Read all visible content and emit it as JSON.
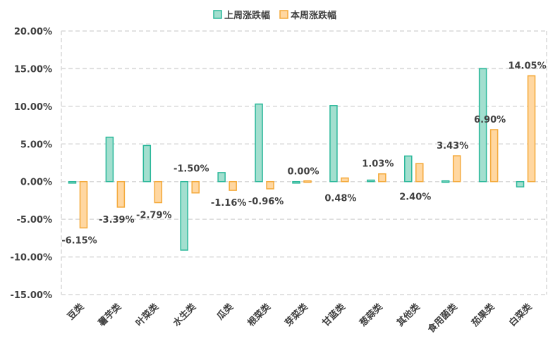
{
  "colors": {
    "last_week_fill": "#a3dfcf",
    "last_week_stroke": "#2bb89a",
    "this_week_fill": "#ffd7a1",
    "this_week_stroke": "#f4a93a",
    "grid": "#d9d9d9",
    "text": "#404040"
  },
  "chart_data": {
    "type": "bar",
    "categories": [
      "豆类",
      "薯芋类",
      "叶菜类",
      "水生类",
      "瓜类",
      "根菜类",
      "芽菜类",
      "甘蓝类",
      "葱蒜类",
      "其他类",
      "食用菌类",
      "茄果类",
      "白菜类"
    ],
    "series": [
      {
        "name": "上周涨跌幅",
        "values": [
          -0.2,
          5.9,
          4.8,
          -9.1,
          1.2,
          10.3,
          -0.2,
          10.1,
          0.2,
          3.4,
          -0.1,
          15.0,
          -0.7
        ]
      },
      {
        "name": "本周涨跌幅",
        "values": [
          -6.15,
          -3.39,
          -2.79,
          -1.5,
          -1.16,
          -0.96,
          0.0,
          0.48,
          1.03,
          2.4,
          3.43,
          6.9,
          14.05
        ]
      }
    ],
    "data_labels": [
      "-6.15%",
      "-3.39%",
      "-2.79%",
      "-1.50%",
      "-1.16%",
      "-0.96%",
      "0.00%",
      "0.48%",
      "1.03%",
      "2.40%",
      "3.43%",
      "6.90%",
      "14.05%"
    ],
    "y_ticks": [
      "20.00%",
      "15.00%",
      "10.00%",
      "5.00%",
      "0.00%",
      "-5.00%",
      "-10.00%",
      "-15.00%"
    ],
    "ylim": [
      -15,
      20
    ],
    "grid": true,
    "legend_position": "top"
  }
}
